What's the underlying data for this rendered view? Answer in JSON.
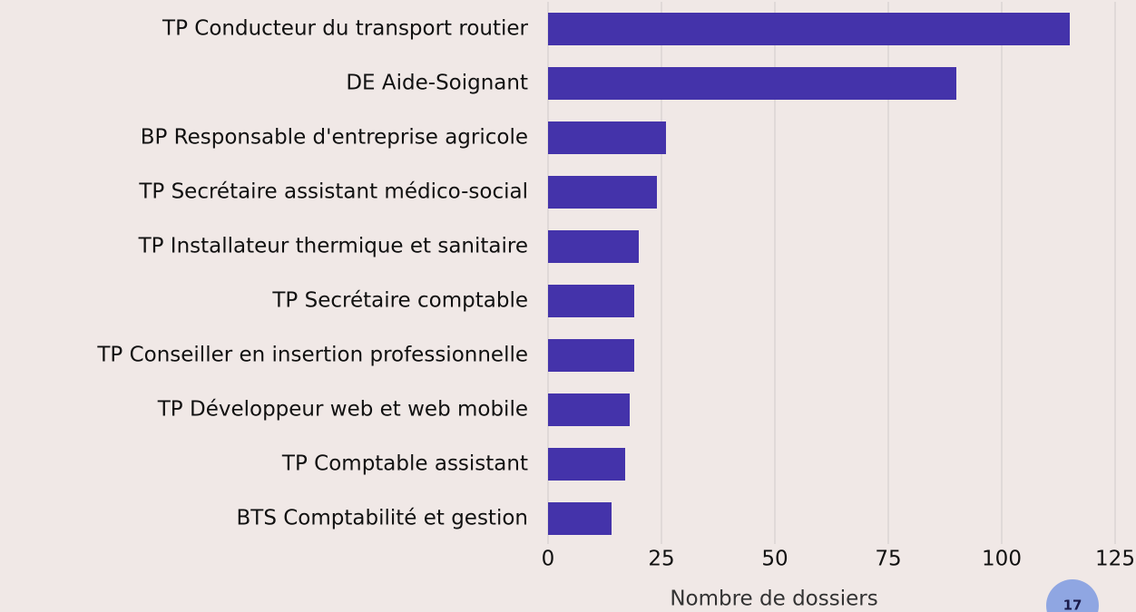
{
  "chart_data": {
    "type": "barh",
    "categories": [
      "TP Conducteur du transport routier",
      "DE Aide-Soignant",
      "BP Responsable d'entreprise agricole",
      "TP Secrétaire assistant médico-social",
      "TP Installateur thermique et sanitaire",
      "TP Secrétaire comptable",
      "TP Conseiller en insertion professionnelle",
      "TP Développeur web et web mobile",
      "TP Comptable assistant",
      "BTS Comptabilité et gestion"
    ],
    "values": [
      115,
      90,
      26,
      24,
      20,
      19,
      19,
      18,
      17,
      14
    ],
    "color": "#4433aa",
    "xlabel": "Nombre de dossiers",
    "xlim": [
      0,
      125
    ],
    "xticks": [
      0,
      25,
      50,
      75,
      100,
      125
    ],
    "grid": true
  },
  "page_number": "17"
}
